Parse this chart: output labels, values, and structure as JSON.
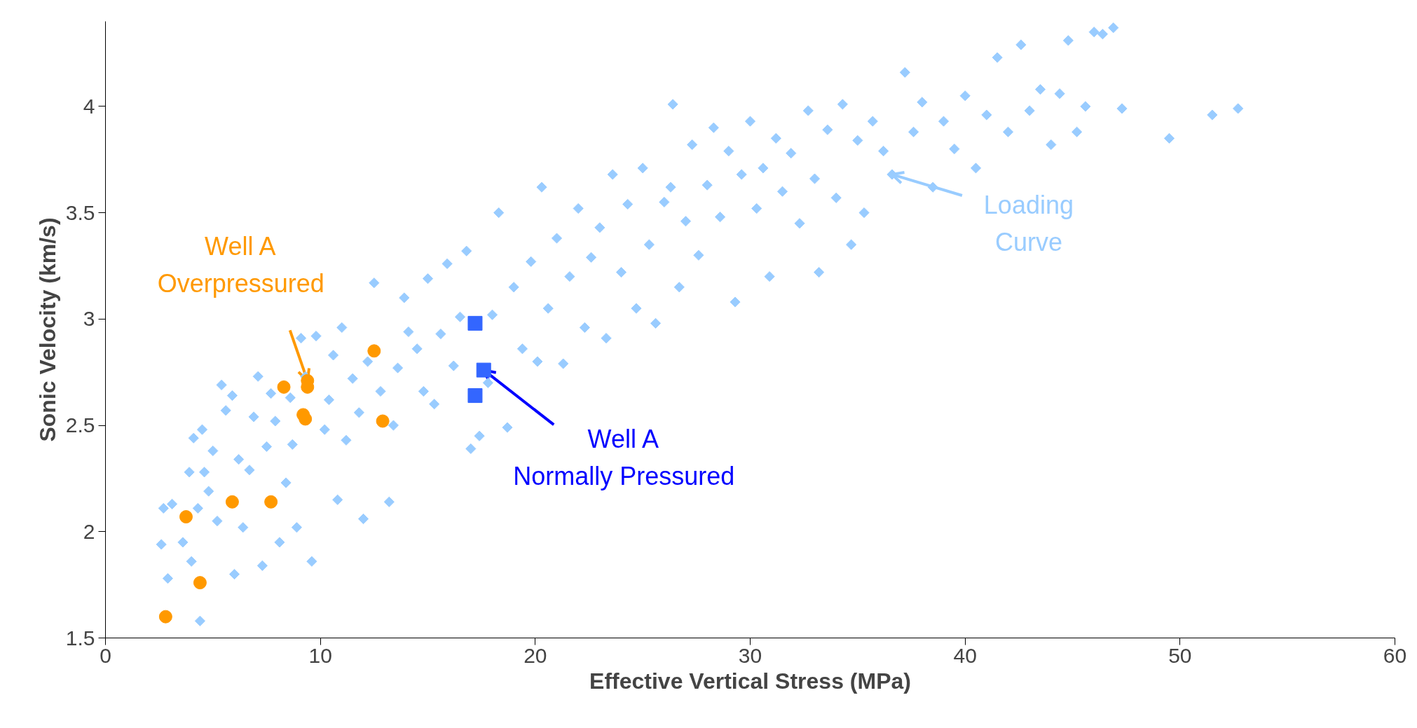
{
  "chart_data": {
    "type": "scatter",
    "xlabel": "Effective Vertical Stress (MPa)",
    "ylabel": "Sonic Velocity (km/s)",
    "xlim": [
      0,
      60
    ],
    "ylim": [
      1.5,
      4.4
    ],
    "xticks": [
      0,
      10,
      20,
      30,
      40,
      50,
      60
    ],
    "yticks": [
      1.5,
      2,
      2.5,
      3,
      3.5,
      4
    ],
    "grid": false,
    "series": [
      {
        "color": "#99ccff",
        "marker": "diamond",
        "x": [
          2.6,
          2.7,
          2.9,
          3.1,
          3.6,
          3.9,
          4.0,
          4.1,
          4.3,
          4.4,
          4.5,
          4.6,
          4.8,
          5.0,
          5.2,
          5.4,
          5.6,
          5.9,
          6.0,
          6.2,
          6.4,
          6.7,
          6.9,
          7.1,
          7.3,
          7.5,
          7.7,
          7.9,
          8.1,
          8.4,
          8.6,
          8.7,
          8.9,
          9.1,
          9.3,
          9.6,
          9.8,
          10.2,
          10.4,
          10.6,
          10.8,
          11.0,
          11.2,
          11.5,
          11.8,
          12.0,
          12.2,
          12.5,
          12.8,
          13.2,
          13.4,
          13.6,
          13.9,
          14.1,
          14.5,
          14.8,
          15.0,
          15.3,
          15.6,
          15.9,
          16.2,
          16.5,
          16.8,
          17.0,
          17.4,
          17.8,
          18.0,
          18.3,
          18.7,
          19.0,
          19.4,
          19.8,
          20.1,
          20.3,
          20.6,
          21.0,
          21.3,
          21.6,
          22.0,
          22.3,
          22.6,
          23.0,
          23.3,
          23.6,
          24.0,
          24.3,
          24.7,
          25.0,
          25.3,
          25.6,
          26.0,
          26.3,
          26.4,
          26.7,
          27.0,
          27.3,
          27.6,
          28.0,
          28.3,
          28.6,
          29.0,
          29.3,
          29.6,
          30.0,
          30.3,
          30.6,
          30.9,
          31.2,
          31.5,
          31.9,
          32.3,
          32.7,
          33.0,
          33.2,
          33.6,
          34.0,
          34.3,
          34.7,
          35.0,
          35.3,
          35.7,
          36.2,
          36.6,
          37.2,
          37.6,
          38.0,
          38.5,
          39.0,
          39.5,
          40.0,
          40.5,
          41.0,
          41.5,
          42.0,
          42.6,
          43.0,
          43.5,
          44.0,
          44.4,
          44.8,
          45.2,
          45.6,
          46.0,
          46.4,
          46.9,
          47.3,
          49.5,
          51.5,
          52.7
        ],
        "values": [
          1.94,
          2.11,
          1.78,
          2.13,
          1.95,
          2.28,
          1.86,
          2.44,
          2.11,
          1.58,
          2.48,
          2.28,
          2.19,
          2.38,
          2.05,
          2.69,
          2.57,
          2.64,
          1.8,
          2.34,
          2.02,
          2.29,
          2.54,
          2.73,
          1.84,
          2.4,
          2.65,
          2.52,
          1.95,
          2.23,
          2.63,
          2.41,
          2.02,
          2.91,
          2.73,
          1.86,
          2.92,
          2.48,
          2.62,
          2.83,
          2.15,
          2.96,
          2.43,
          2.72,
          2.56,
          2.06,
          2.8,
          3.17,
          2.66,
          2.14,
          2.5,
          2.77,
          3.1,
          2.94,
          2.86,
          2.66,
          3.19,
          2.6,
          2.93,
          3.26,
          2.78,
          3.01,
          3.32,
          2.39,
          2.45,
          2.7,
          3.02,
          3.5,
          2.49,
          3.15,
          2.86,
          3.27,
          2.8,
          3.62,
          3.05,
          3.38,
          2.79,
          3.2,
          3.52,
          2.96,
          3.29,
          3.43,
          2.91,
          3.68,
          3.22,
          3.54,
          3.05,
          3.71,
          3.35,
          2.98,
          3.55,
          3.62,
          4.01,
          3.15,
          3.46,
          3.82,
          3.3,
          3.63,
          3.9,
          3.48,
          3.79,
          3.08,
          3.68,
          3.93,
          3.52,
          3.71,
          3.2,
          3.85,
          3.6,
          3.78,
          3.45,
          3.98,
          3.66,
          3.22,
          3.89,
          3.57,
          4.01,
          3.35,
          3.84,
          3.5,
          3.93,
          3.79,
          3.68,
          4.16,
          3.88,
          4.02,
          3.62,
          3.93,
          3.8,
          4.05,
          3.71,
          3.96,
          4.23,
          3.88,
          4.29,
          3.98,
          4.08,
          3.82,
          4.06,
          4.31,
          3.88,
          4.0,
          4.35,
          4.34,
          4.37,
          3.99,
          3.85,
          3.96,
          3.99
        ]
      },
      {
        "color": "#ff9900",
        "marker": "circle",
        "x": [
          2.8,
          3.75,
          4.4,
          5.9,
          7.7,
          8.3,
          9.4,
          9.4,
          9.2,
          9.3,
          12.5,
          12.9
        ],
        "values": [
          1.6,
          2.07,
          1.76,
          2.14,
          2.14,
          2.68,
          2.71,
          2.68,
          2.55,
          2.53,
          2.85,
          2.52
        ]
      },
      {
        "color": "#3366ff",
        "marker": "square",
        "x": [
          17.2,
          17.6,
          17.2
        ],
        "values": [
          2.98,
          2.76,
          2.64
        ]
      }
    ],
    "annotations": [
      {
        "text": "Well A\nOverpressured",
        "x": 9.4,
        "y": 2.71
      },
      {
        "text": "Well A\nNormally Pressured",
        "x": 17.6,
        "y": 2.76
      },
      {
        "text": "Loading\nCurve",
        "x": 36.6,
        "y": 3.68
      }
    ]
  }
}
